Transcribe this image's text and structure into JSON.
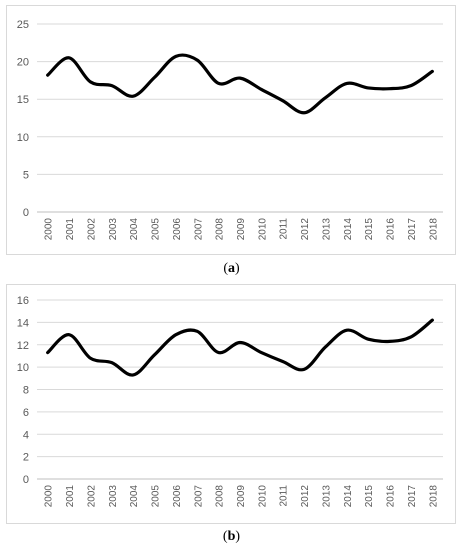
{
  "chart_data": [
    {
      "type": "line",
      "panel_label": "a",
      "x": [
        "2000",
        "2001",
        "2002",
        "2003",
        "2004",
        "2005",
        "2006",
        "2007",
        "2008",
        "2009",
        "2010",
        "2011",
        "2012",
        "2013",
        "2014",
        "2015",
        "2016",
        "2017",
        "2018"
      ],
      "series": [
        {
          "values": [
            18.2,
            20.5,
            17.3,
            16.8,
            15.4,
            17.9,
            20.7,
            20.2,
            17.1,
            17.8,
            16.3,
            14.8,
            13.2,
            15.2,
            17.1,
            16.5,
            16.4,
            16.8,
            18.7
          ]
        }
      ],
      "ylim": [
        0,
        25
      ],
      "yticks": [
        0,
        5,
        10,
        15,
        20,
        25
      ],
      "grid": true,
      "line_color": "#000000"
    },
    {
      "type": "line",
      "panel_label": "b",
      "x": [
        "2000",
        "2001",
        "2002",
        "2003",
        "2004",
        "2005",
        "2006",
        "2007",
        "2008",
        "2009",
        "2010",
        "2011",
        "2012",
        "2013",
        "2014",
        "2015",
        "2016",
        "2017",
        "2018"
      ],
      "series": [
        {
          "values": [
            11.3,
            12.9,
            10.8,
            10.4,
            9.3,
            11.1,
            12.9,
            13.2,
            11.3,
            12.2,
            11.3,
            10.5,
            9.8,
            11.8,
            13.3,
            12.5,
            12.3,
            12.7,
            14.2
          ]
        }
      ],
      "ylim": [
        0,
        16
      ],
      "yticks": [
        0,
        2,
        4,
        6,
        8,
        10,
        12,
        14,
        16
      ],
      "grid": true,
      "line_color": "#000000"
    }
  ],
  "captions": {
    "a": "a",
    "b": "b"
  },
  "colors": {
    "grid": "#d9d9d9",
    "axis": "#bfbfbf",
    "tick_text": "#595959",
    "line": "#000000"
  }
}
